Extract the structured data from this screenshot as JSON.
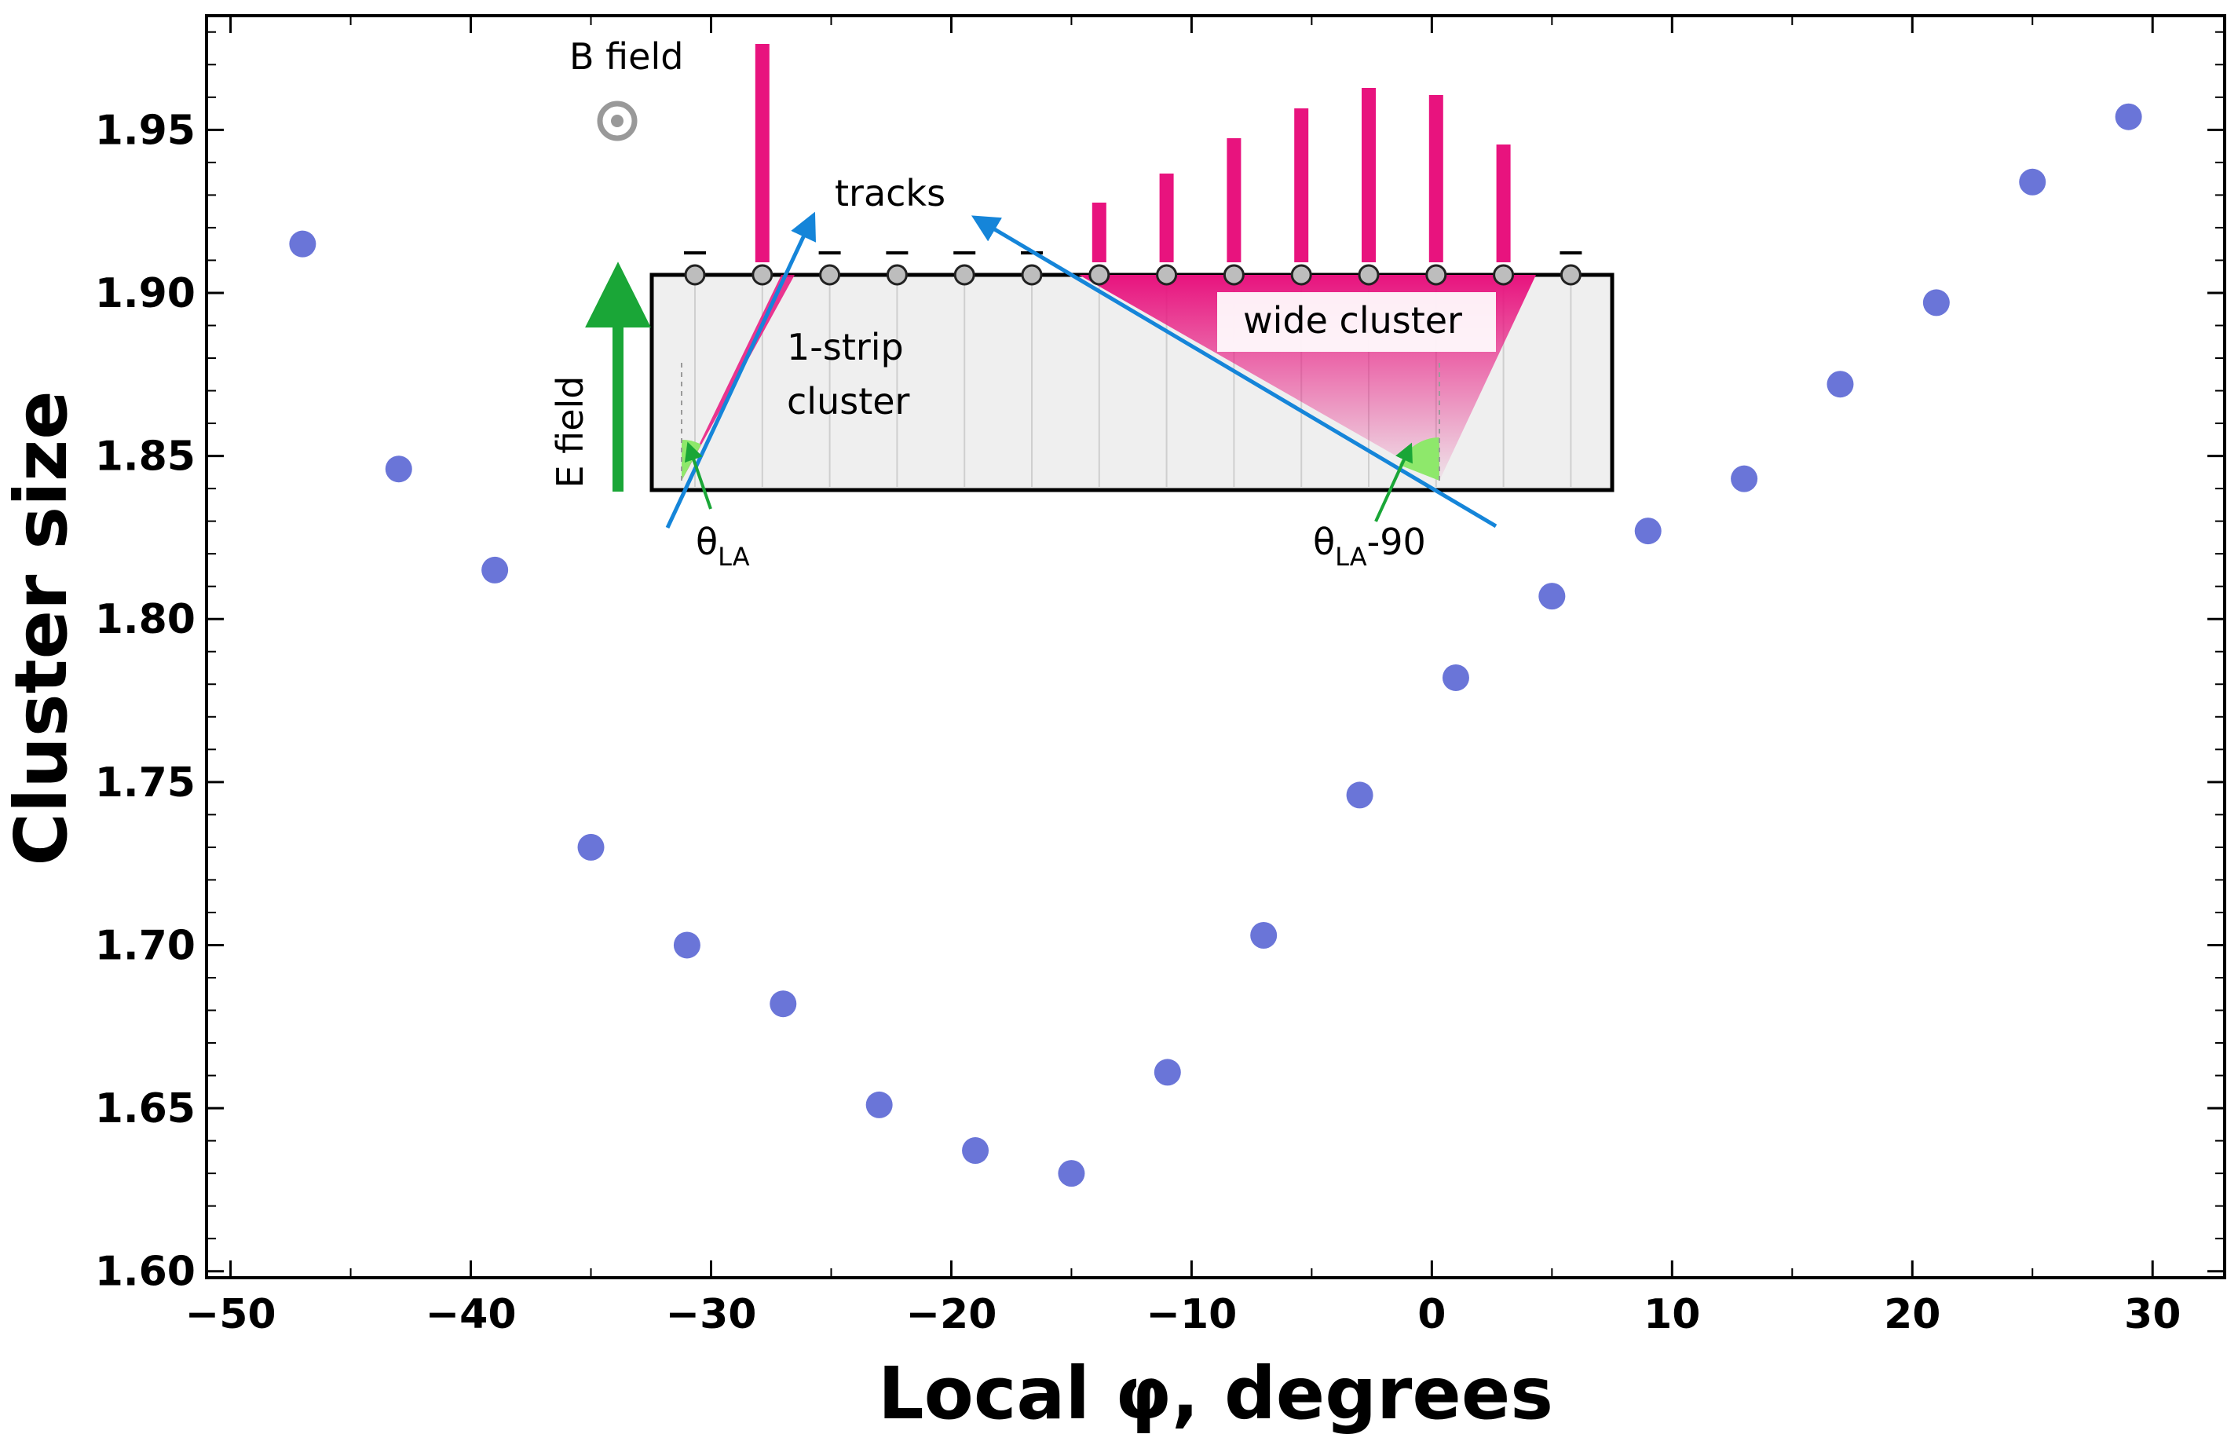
{
  "chart_data": {
    "type": "scatter",
    "xlabel": "Local φ, degrees",
    "ylabel": "Cluster size",
    "xlim": [
      -51,
      33
    ],
    "ylim": [
      1.598,
      1.985
    ],
    "x_ticks": [
      -50,
      -40,
      -30,
      -20,
      -10,
      0,
      10,
      20,
      30
    ],
    "x_tick_labels": [
      "−50",
      "−40",
      "−30",
      "−20",
      "−10",
      "0",
      "10",
      "20",
      "30"
    ],
    "y_ticks": [
      1.6,
      1.65,
      1.7,
      1.75,
      1.8,
      1.85,
      1.9,
      1.95
    ],
    "y_tick_labels": [
      "1.60",
      "1.65",
      "1.70",
      "1.75",
      "1.80",
      "1.85",
      "1.90",
      "1.95"
    ],
    "grid": false,
    "marker_color": "#6a75d8",
    "x": [
      -47,
      -43,
      -39,
      -35,
      -31,
      -27,
      -23,
      -19,
      -15,
      -11,
      -7,
      -3,
      1,
      5,
      9,
      13,
      17,
      21,
      25,
      29
    ],
    "y": [
      1.915,
      1.846,
      1.815,
      1.73,
      1.7,
      1.682,
      1.651,
      1.637,
      1.63,
      1.661,
      1.703,
      1.746,
      1.782,
      1.807,
      1.827,
      1.843,
      1.872,
      1.897,
      1.934,
      1.954
    ],
    "inset": {
      "labels": {
        "b_field": "B field",
        "tracks": "tracks",
        "e_field": "E field",
        "one_strip": [
          "1-strip",
          "cluster"
        ],
        "wide_cluster": "wide cluster",
        "theta_left_main": "θ",
        "theta_left_sub": "LA",
        "theta_right_main": "θ",
        "theta_right_sub": "LA",
        "theta_right_suffix": "-90"
      },
      "colors": {
        "charge": "#e8137e",
        "track": "#1585d9",
        "e_field_arrow": "#1aa637",
        "angle": "#8ee86b",
        "sensor_fill": "#efefef"
      }
    }
  }
}
